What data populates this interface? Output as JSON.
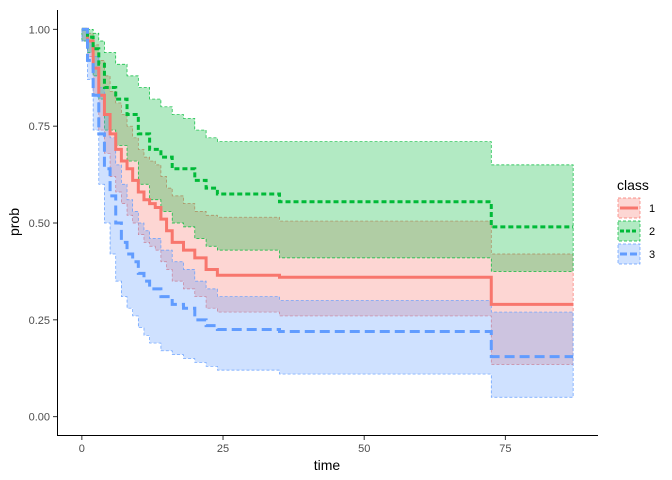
{
  "chart_data": {
    "type": "area",
    "xlabel": "time",
    "ylabel": "prob",
    "xlim": [
      -4.4,
      91.4
    ],
    "ylim": [
      -0.05,
      1.05
    ],
    "xticks": [
      0,
      25,
      50,
      75
    ],
    "yticks": [
      0.0,
      0.25,
      0.5,
      0.75,
      1.0
    ],
    "ytick_labels": [
      "0.00",
      "0.25",
      "0.50",
      "0.75",
      "1.00"
    ],
    "grid": false,
    "legend": {
      "title": "class",
      "position": "right"
    },
    "series": [
      {
        "name": "1",
        "color": "#F8766D",
        "fill": "#F8766D",
        "line_style": "solid",
        "steps": [
          [
            0,
            1.0
          ],
          [
            1,
            0.97
          ],
          [
            2,
            0.9
          ],
          [
            3,
            0.83
          ],
          [
            4,
            0.78
          ],
          [
            5,
            0.73
          ],
          [
            6,
            0.69
          ],
          [
            7,
            0.66
          ],
          [
            8,
            0.64
          ],
          [
            9,
            0.61
          ],
          [
            10,
            0.58
          ],
          [
            11,
            0.56
          ],
          [
            12,
            0.55
          ],
          [
            13,
            0.54
          ],
          [
            14,
            0.51
          ],
          [
            15,
            0.48
          ],
          [
            16,
            0.45
          ],
          [
            18,
            0.43
          ],
          [
            20,
            0.41
          ],
          [
            22,
            0.38
          ],
          [
            24,
            0.365
          ],
          [
            35,
            0.36
          ],
          [
            72.5,
            0.29
          ],
          [
            87,
            0.29
          ]
        ],
        "upper": [
          [
            0,
            1.0
          ],
          [
            1,
            0.99
          ],
          [
            2,
            0.96
          ],
          [
            3,
            0.92
          ],
          [
            4,
            0.88
          ],
          [
            5,
            0.84
          ],
          [
            6,
            0.81
          ],
          [
            7,
            0.78
          ],
          [
            8,
            0.75
          ],
          [
            9,
            0.72
          ],
          [
            10,
            0.69
          ],
          [
            11,
            0.67
          ],
          [
            12,
            0.66
          ],
          [
            13,
            0.65
          ],
          [
            14,
            0.62
          ],
          [
            15,
            0.59
          ],
          [
            16,
            0.57
          ],
          [
            18,
            0.55
          ],
          [
            20,
            0.53
          ],
          [
            22,
            0.52
          ],
          [
            24,
            0.515
          ],
          [
            35,
            0.505
          ],
          [
            72.5,
            0.42
          ],
          [
            87,
            0.42
          ]
        ],
        "lower": [
          [
            0,
            0.97
          ],
          [
            1,
            0.93
          ],
          [
            2,
            0.83
          ],
          [
            3,
            0.74
          ],
          [
            4,
            0.68
          ],
          [
            5,
            0.62
          ],
          [
            6,
            0.58
          ],
          [
            7,
            0.55
          ],
          [
            8,
            0.52
          ],
          [
            9,
            0.5
          ],
          [
            10,
            0.47
          ],
          [
            11,
            0.45
          ],
          [
            12,
            0.44
          ],
          [
            13,
            0.43
          ],
          [
            14,
            0.4
          ],
          [
            15,
            0.38
          ],
          [
            16,
            0.35
          ],
          [
            18,
            0.33
          ],
          [
            20,
            0.31
          ],
          [
            22,
            0.28
          ],
          [
            24,
            0.27
          ],
          [
            35,
            0.26
          ],
          [
            72.5,
            0.135
          ],
          [
            87,
            0.135
          ]
        ]
      },
      {
        "name": "2",
        "color": "#00BA38",
        "fill": "#00BA38",
        "line_style": "dotted",
        "steps": [
          [
            0,
            1.0
          ],
          [
            1,
            0.98
          ],
          [
            2,
            0.95
          ],
          [
            3,
            0.91
          ],
          [
            4,
            0.85
          ],
          [
            6,
            0.82
          ],
          [
            8,
            0.78
          ],
          [
            10,
            0.73
          ],
          [
            12,
            0.69
          ],
          [
            14,
            0.67
          ],
          [
            16,
            0.64
          ],
          [
            18,
            0.64
          ],
          [
            20,
            0.61
          ],
          [
            22,
            0.59
          ],
          [
            24,
            0.575
          ],
          [
            35,
            0.555
          ],
          [
            72.5,
            0.49
          ],
          [
            87,
            0.49
          ]
        ],
        "upper": [
          [
            0,
            1.0
          ],
          [
            1,
            1.0
          ],
          [
            2,
            0.99
          ],
          [
            3,
            0.97
          ],
          [
            4,
            0.94
          ],
          [
            6,
            0.91
          ],
          [
            8,
            0.88
          ],
          [
            10,
            0.85
          ],
          [
            12,
            0.82
          ],
          [
            14,
            0.8
          ],
          [
            16,
            0.78
          ],
          [
            18,
            0.77
          ],
          [
            20,
            0.74
          ],
          [
            22,
            0.72
          ],
          [
            24,
            0.71
          ],
          [
            72.5,
            0.65
          ],
          [
            87,
            0.65
          ]
        ],
        "lower": [
          [
            0,
            0.97
          ],
          [
            1,
            0.94
          ],
          [
            2,
            0.88
          ],
          [
            3,
            0.82
          ],
          [
            4,
            0.74
          ],
          [
            6,
            0.7
          ],
          [
            8,
            0.66
          ],
          [
            10,
            0.6
          ],
          [
            12,
            0.56
          ],
          [
            14,
            0.53
          ],
          [
            16,
            0.5
          ],
          [
            18,
            0.49
          ],
          [
            20,
            0.46
          ],
          [
            22,
            0.44
          ],
          [
            24,
            0.43
          ],
          [
            35,
            0.41
          ],
          [
            72.5,
            0.375
          ],
          [
            87,
            0.375
          ]
        ]
      },
      {
        "name": "3",
        "color": "#619CFF",
        "fill": "#619CFF",
        "line_style": "dashed",
        "steps": [
          [
            0,
            1.0
          ],
          [
            1,
            0.92
          ],
          [
            2,
            0.83
          ],
          [
            3,
            0.73
          ],
          [
            4,
            0.64
          ],
          [
            5,
            0.57
          ],
          [
            6,
            0.5
          ],
          [
            7,
            0.45
          ],
          [
            8,
            0.42
          ],
          [
            9,
            0.4
          ],
          [
            10,
            0.37
          ],
          [
            11,
            0.35
          ],
          [
            12,
            0.33
          ],
          [
            14,
            0.31
          ],
          [
            16,
            0.29
          ],
          [
            18,
            0.28
          ],
          [
            20,
            0.25
          ],
          [
            22,
            0.235
          ],
          [
            24,
            0.225
          ],
          [
            35,
            0.22
          ],
          [
            72.5,
            0.155
          ],
          [
            87,
            0.155
          ]
        ],
        "upper": [
          [
            0,
            1.0
          ],
          [
            1,
            0.97
          ],
          [
            2,
            0.93
          ],
          [
            3,
            0.85
          ],
          [
            4,
            0.78
          ],
          [
            5,
            0.72
          ],
          [
            6,
            0.65
          ],
          [
            7,
            0.6
          ],
          [
            8,
            0.56
          ],
          [
            9,
            0.53
          ],
          [
            10,
            0.5
          ],
          [
            11,
            0.48
          ],
          [
            12,
            0.46
          ],
          [
            14,
            0.43
          ],
          [
            16,
            0.4
          ],
          [
            18,
            0.38
          ],
          [
            20,
            0.35
          ],
          [
            22,
            0.33
          ],
          [
            24,
            0.31
          ],
          [
            35,
            0.3
          ],
          [
            72.5,
            0.27
          ],
          [
            87,
            0.27
          ]
        ],
        "lower": [
          [
            0,
            0.97
          ],
          [
            1,
            0.87
          ],
          [
            2,
            0.74
          ],
          [
            3,
            0.6
          ],
          [
            4,
            0.5
          ],
          [
            5,
            0.42
          ],
          [
            6,
            0.35
          ],
          [
            7,
            0.31
          ],
          [
            8,
            0.28
          ],
          [
            9,
            0.26
          ],
          [
            10,
            0.23
          ],
          [
            11,
            0.21
          ],
          [
            12,
            0.19
          ],
          [
            14,
            0.17
          ],
          [
            16,
            0.16
          ],
          [
            18,
            0.15
          ],
          [
            20,
            0.14
          ],
          [
            22,
            0.13
          ],
          [
            24,
            0.12
          ],
          [
            35,
            0.11
          ],
          [
            72.5,
            0.05
          ],
          [
            87,
            0.05
          ]
        ]
      }
    ]
  }
}
